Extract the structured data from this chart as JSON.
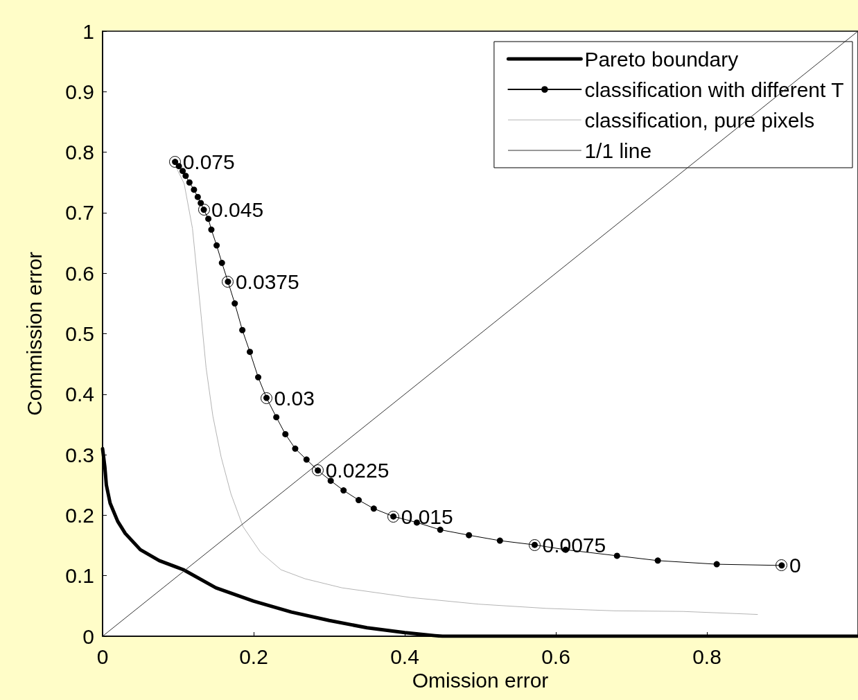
{
  "chart_data": {
    "type": "line",
    "xlabel": "Omission error",
    "ylabel": "Commission error",
    "xlim": [
      0,
      1
    ],
    "ylim": [
      0,
      1
    ],
    "xticks": [
      0,
      0.2,
      0.4,
      0.6,
      0.8
    ],
    "yticks": [
      0,
      0.1,
      0.2,
      0.3,
      0.4,
      0.5,
      0.6,
      0.7,
      0.8,
      0.9,
      1
    ],
    "grid": false,
    "legend": "top right",
    "line_style": "solid",
    "series": [
      {
        "name": "Pareto boundary",
        "color": "#000000",
        "marker": "none",
        "x": [
          0,
          0.003,
          0.005,
          0.01,
          0.02,
          0.03,
          0.05,
          0.075,
          0.107,
          0.15,
          0.2,
          0.25,
          0.3,
          0.35,
          0.4,
          0.44,
          0.45,
          1
        ],
        "values": [
          0.31,
          0.28,
          0.25,
          0.22,
          0.19,
          0.17,
          0.143,
          0.125,
          0.11,
          0.08,
          0.058,
          0.04,
          0.026,
          0.014,
          0.006,
          0.001,
          0,
          0
        ]
      },
      {
        "name": "classification with different T",
        "color": "#000000",
        "marker": "circle",
        "x": [
          0.096,
          0.101,
          0.106,
          0.11,
          0.115,
          0.121,
          0.126,
          0.13,
          0.134,
          0.14,
          0.144,
          0.151,
          0.158,
          0.166,
          0.175,
          0.185,
          0.195,
          0.206,
          0.217,
          0.23,
          0.242,
          0.255,
          0.27,
          0.285,
          0.302,
          0.319,
          0.339,
          0.359,
          0.385,
          0.416,
          0.447,
          0.485,
          0.526,
          0.572,
          0.613,
          0.681,
          0.735,
          0.813,
          0.899
        ],
        "values": [
          0.784,
          0.777,
          0.769,
          0.761,
          0.75,
          0.738,
          0.726,
          0.716,
          0.705,
          0.69,
          0.672,
          0.646,
          0.617,
          0.586,
          0.55,
          0.506,
          0.47,
          0.428,
          0.394,
          0.362,
          0.334,
          0.31,
          0.292,
          0.274,
          0.257,
          0.241,
          0.225,
          0.211,
          0.198,
          0.188,
          0.176,
          0.167,
          0.158,
          0.151,
          0.143,
          0.133,
          0.125,
          0.119,
          0.117
        ]
      },
      {
        "name": "classification, pure pixels",
        "color": "#b4b4b4",
        "marker": "none",
        "x": [
          0.099,
          0.108,
          0.119,
          0.13,
          0.137,
          0.146,
          0.157,
          0.17,
          0.186,
          0.209,
          0.236,
          0.268,
          0.317,
          0.408,
          0.498,
          0.588,
          0.678,
          0.768,
          0.867
        ],
        "values": [
          0.771,
          0.748,
          0.674,
          0.536,
          0.444,
          0.364,
          0.296,
          0.235,
          0.181,
          0.139,
          0.11,
          0.095,
          0.08,
          0.064,
          0.053,
          0.046,
          0.042,
          0.041,
          0.036
        ]
      },
      {
        "name": "1/1 line",
        "color": "#333333",
        "marker": "none",
        "x": [
          0,
          1
        ],
        "values": [
          0,
          1
        ]
      }
    ],
    "annotations": [
      {
        "text": "0.075",
        "x": 0.096,
        "y": 0.784
      },
      {
        "text": "0.045",
        "x": 0.134,
        "y": 0.705
      },
      {
        "text": "0.0375",
        "x": 0.166,
        "y": 0.586
      },
      {
        "text": "0.03",
        "x": 0.217,
        "y": 0.394
      },
      {
        "text": "0.0225",
        "x": 0.285,
        "y": 0.274
      },
      {
        "text": "0.015",
        "x": 0.385,
        "y": 0.198
      },
      {
        "text": "0.0075",
        "x": 0.572,
        "y": 0.151
      },
      {
        "text": "0",
        "x": 0.899,
        "y": 0.117
      }
    ]
  }
}
